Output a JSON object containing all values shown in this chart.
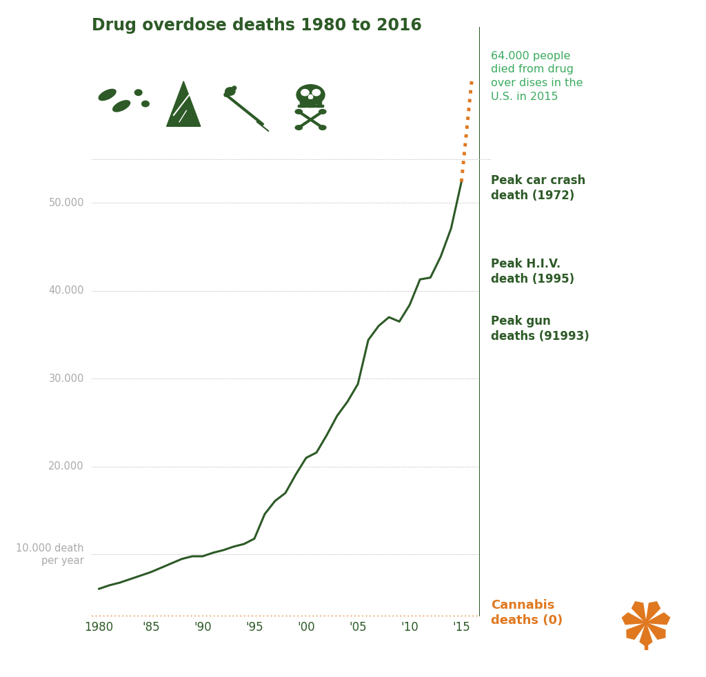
{
  "title": "Drug overdose deaths 1980 to 2016",
  "title_color": "#2d5a27",
  "background_color": "#ffffff",
  "line_color": "#2d5a27",
  "line_width": 2.2,
  "orange_color": "#e07820",
  "grid_color": "#aaaaaa",
  "tick_label_color": "#aaaaaa",
  "annotation_color_dark": "#2d5a27",
  "annotation_color_bright": "#3aaa5e",
  "years": [
    1980,
    1981,
    1982,
    1983,
    1984,
    1985,
    1986,
    1987,
    1988,
    1989,
    1990,
    1991,
    1992,
    1993,
    1994,
    1995,
    1996,
    1997,
    1998,
    1999,
    2000,
    2001,
    2002,
    2003,
    2004,
    2005,
    2006,
    2007,
    2008,
    2009,
    2010,
    2011,
    2012,
    2013,
    2014,
    2015,
    2016
  ],
  "deaths": [
    6100,
    6500,
    6800,
    7200,
    7600,
    8000,
    8500,
    9000,
    9500,
    9800,
    9800,
    10200,
    10500,
    10900,
    11200,
    11800,
    14600,
    16100,
    17000,
    19100,
    21000,
    21600,
    23600,
    25800,
    27400,
    29400,
    34400,
    36000,
    37000,
    36500,
    38400,
    41300,
    41500,
    43900,
    47100,
    52400,
    64000
  ],
  "yticks": [
    10000,
    20000,
    30000,
    40000,
    50000
  ],
  "xtick_years": [
    1980,
    1985,
    1990,
    1995,
    2000,
    2005,
    2010,
    2015
  ],
  "xtick_labels": [
    "1980",
    "'85",
    "'90",
    "'95",
    "'00",
    "'05",
    "'10",
    "'15"
  ],
  "cannabis_text": "Cannabis\ndeaths (0)",
  "cannabis_color": "#e07820",
  "ylim": [
    3000,
    70000
  ],
  "xlim": [
    1979.3,
    2016.8
  ]
}
